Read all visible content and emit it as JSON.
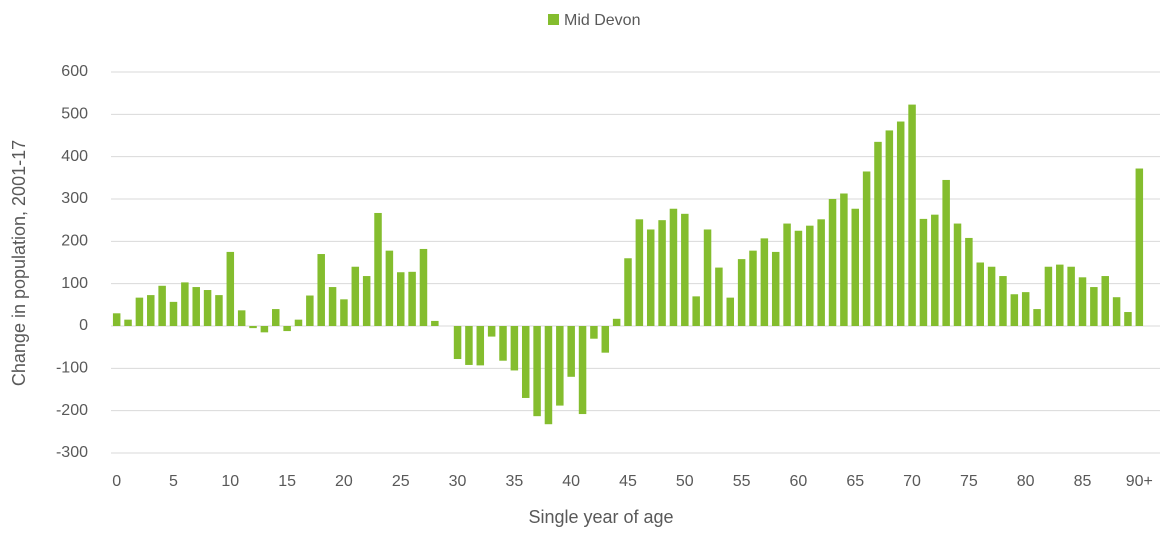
{
  "chart_data": {
    "type": "bar",
    "legend": "top",
    "series": [
      {
        "name": "Mid Devon",
        "color": "#84bd2e",
        "values": [
          30,
          15,
          67,
          73,
          95,
          57,
          103,
          92,
          85,
          73,
          175,
          37,
          -5,
          -15,
          40,
          -12,
          15,
          72,
          170,
          92,
          63,
          140,
          118,
          267,
          178,
          127,
          128,
          182,
          12,
          0,
          -78,
          -92,
          -93,
          -25,
          -82,
          -105,
          -170,
          -213,
          -232,
          -188,
          -120,
          -208,
          -30,
          -63,
          17,
          160,
          252,
          228,
          250,
          277,
          265,
          70,
          228,
          138,
          67,
          158,
          178,
          207,
          175,
          242,
          225,
          237,
          252,
          300,
          313,
          277,
          365,
          435,
          462,
          483,
          523,
          253,
          263,
          345,
          242,
          208,
          150,
          140,
          118,
          75,
          80,
          40,
          140,
          145,
          140,
          115,
          92,
          118,
          68,
          33,
          372
        ]
      }
    ],
    "categories": [
      "0",
      null,
      null,
      null,
      null,
      "5",
      null,
      null,
      null,
      null,
      "10",
      null,
      null,
      null,
      null,
      "15",
      null,
      null,
      null,
      null,
      "20",
      null,
      null,
      null,
      null,
      "25",
      null,
      null,
      null,
      null,
      "30",
      null,
      null,
      null,
      null,
      "35",
      null,
      null,
      null,
      null,
      "40",
      null,
      null,
      null,
      null,
      "45",
      null,
      null,
      null,
      null,
      "50",
      null,
      null,
      null,
      null,
      "55",
      null,
      null,
      null,
      null,
      "60",
      null,
      null,
      null,
      null,
      "65",
      null,
      null,
      null,
      null,
      "70",
      null,
      null,
      null,
      null,
      "75",
      null,
      null,
      null,
      null,
      "80",
      null,
      null,
      null,
      null,
      "85",
      null,
      null,
      null,
      null,
      "90+"
    ],
    "x_label": "Single year of age",
    "y_label": "Change in population, 2001-17",
    "ylim": [
      -300,
      600
    ],
    "yticks": [
      -300,
      -200,
      -100,
      0,
      100,
      200,
      300,
      400,
      500,
      600
    ],
    "grid": true
  }
}
